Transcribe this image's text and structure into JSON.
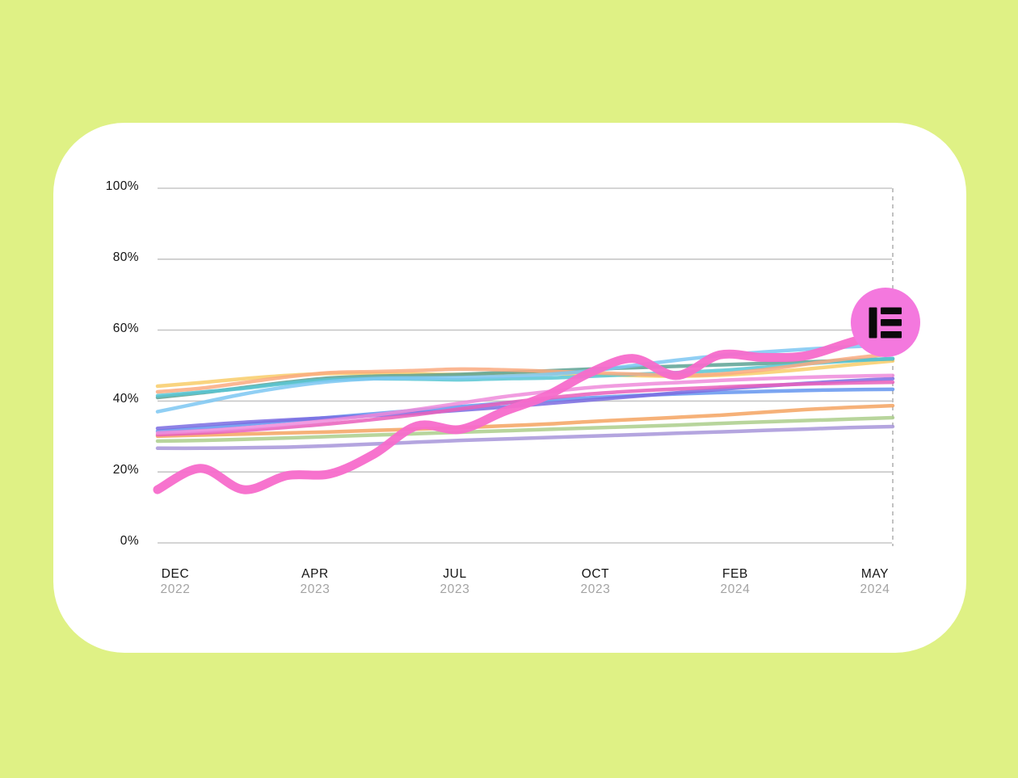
{
  "page": {
    "background_color": "#dff185",
    "card_color": "#ffffff"
  },
  "chart_data": {
    "type": "line",
    "title": "",
    "description": "Multi-series percentage line chart, Dec 2022 to May 2024, featured thick pink line ends at Elementor logo badge",
    "ylim": [
      0,
      100
    ],
    "grid": "horizontal",
    "legend": "none",
    "y_ticks": [
      "0%",
      "20%",
      "40%",
      "60%",
      "80%",
      "100%"
    ],
    "y_tick_values": [
      0,
      20,
      40,
      60,
      80,
      100
    ],
    "x_ticks": [
      {
        "month": "DEC",
        "year": "2022"
      },
      {
        "month": "APR",
        "year": "2023"
      },
      {
        "month": "JUL",
        "year": "2023"
      },
      {
        "month": "OCT",
        "year": "2023"
      },
      {
        "month": "FEB",
        "year": "2024"
      },
      {
        "month": "MAY",
        "year": "2024"
      }
    ],
    "x_unit": "monthly points from Dec 2022 through May 2024",
    "series": [
      {
        "name": "lavender",
        "color": "#a795d9",
        "width": 4.5,
        "featured": false,
        "values": [
          26.7,
          26.7,
          26.8,
          27,
          27.4,
          27.9,
          28.4,
          28.9,
          29.3,
          29.7,
          30.1,
          30.5,
          30.9,
          31.3,
          31.7,
          32.1,
          32.5,
          32.8
        ]
      },
      {
        "name": "green",
        "color": "#abce8b",
        "width": 4.5,
        "featured": false,
        "values": [
          28.7,
          28.9,
          29.2,
          29.6,
          30,
          30.4,
          30.8,
          31.2,
          31.6,
          32,
          32.4,
          32.8,
          33.2,
          33.7,
          34.1,
          34.5,
          34.9,
          35.3
        ]
      },
      {
        "name": "orange",
        "color": "#f5a360",
        "width": 4.5,
        "featured": false,
        "values": [
          30.1,
          30.4,
          30.7,
          31,
          31.3,
          31.7,
          32.1,
          32.5,
          33,
          33.5,
          34.2,
          34.8,
          35.4,
          36,
          36.8,
          37.6,
          38.2,
          38.7
        ]
      },
      {
        "name": "royal-blue",
        "color": "#6495ef",
        "width": 4.5,
        "featured": false,
        "values": [
          31.5,
          32.4,
          33.4,
          34.4,
          35.4,
          36.4,
          37.4,
          38.4,
          39.4,
          40.2,
          40.9,
          41.5,
          42,
          42.4,
          42.7,
          43,
          43.2,
          43.3
        ]
      },
      {
        "name": "indigo",
        "color": "#7b6ce2",
        "width": 4.5,
        "featured": false,
        "values": [
          32.3,
          33.2,
          34,
          34.7,
          35.3,
          35.9,
          36.6,
          37.4,
          38.3,
          39.3,
          40.3,
          41.3,
          42.3,
          43.3,
          44.2,
          45,
          45.7,
          46.3
        ]
      },
      {
        "name": "magenta",
        "color": "#e95fbb",
        "width": 4.5,
        "featured": false,
        "values": [
          30.5,
          31,
          31.7,
          32.6,
          33.6,
          34.8,
          36.2,
          37.8,
          39.4,
          40.8,
          42,
          42.8,
          43.4,
          43.9,
          44.4,
          44.8,
          45.1,
          45.3
        ]
      },
      {
        "name": "orchid",
        "color": "#ee8bdb",
        "width": 4.5,
        "featured": false,
        "values": [
          31,
          31.6,
          32.4,
          33.4,
          34.6,
          36,
          37.6,
          39.4,
          41.2,
          42.6,
          43.8,
          44.6,
          45.2,
          45.8,
          46.3,
          46.7,
          47,
          47.2
        ]
      },
      {
        "name": "yellow",
        "color": "#f8cd69",
        "width": 4.5,
        "featured": false,
        "values": [
          44.2,
          45.2,
          46.3,
          47.2,
          47.8,
          47.8,
          47.6,
          47.5,
          47.6,
          47.8,
          47.5,
          47.2,
          47,
          47.3,
          48,
          49,
          50.2,
          51.3
        ]
      },
      {
        "name": "sea-green",
        "color": "#5ca294",
        "width": 4.5,
        "featured": false,
        "values": [
          41,
          42.3,
          43.8,
          45.3,
          46.5,
          47,
          47.2,
          47.5,
          48,
          48.5,
          49,
          49.4,
          49.8,
          50.2,
          50.6,
          51,
          51.5,
          51.9
        ]
      },
      {
        "name": "turquoise",
        "color": "#58c5d4",
        "width": 4.5,
        "featured": false,
        "values": [
          41.5,
          42.5,
          43.6,
          45,
          46,
          46.3,
          46.2,
          46,
          46.3,
          46.5,
          47,
          47.5,
          48,
          48.6,
          49.5,
          50.5,
          51.3,
          52
        ]
      },
      {
        "name": "salmon",
        "color": "#faaa80",
        "width": 4.5,
        "featured": false,
        "values": [
          42.6,
          43.6,
          45.2,
          46.8,
          48,
          48.3,
          48.6,
          49,
          48.8,
          48.4,
          48,
          47.6,
          47.2,
          47.6,
          48.8,
          50.4,
          52,
          53.3
        ]
      },
      {
        "name": "sky-blue",
        "color": "#7cc7f2",
        "width": 4.5,
        "featured": false,
        "values": [
          37,
          39.5,
          42,
          44,
          45.5,
          46.3,
          46.5,
          46.6,
          47,
          47.5,
          48.5,
          50,
          51.5,
          52.8,
          53.8,
          54.6,
          55.3,
          55.8
        ]
      },
      {
        "name": "featured-pink",
        "color": "#f76bcb",
        "width": 11,
        "featured": true,
        "values": [
          15,
          21,
          15,
          19,
          19.5,
          25,
          33,
          32,
          37,
          41.5,
          48,
          52,
          47.2,
          53,
          52.3,
          52.8,
          56.5,
          60
        ]
      }
    ],
    "style": {
      "gridline_color": "#c7c7c7",
      "dashed_line_color": "#adadad",
      "y_label_color": "#141414",
      "month_label_color": "#141414",
      "year_label_color": "#a3a3a3"
    },
    "end_marker": {
      "name": "elementor-logo",
      "circle_color": "#f478de",
      "glyph_color": "#0a0a0a"
    }
  }
}
